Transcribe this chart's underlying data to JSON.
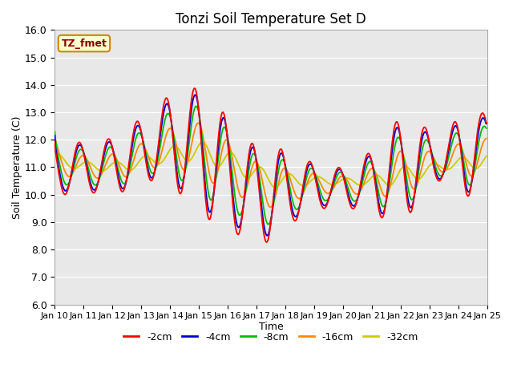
{
  "title": "Tonzi Soil Temperature Set D",
  "xlabel": "Time",
  "ylabel": "Soil Temperature (C)",
  "ylim": [
    6.0,
    16.0
  ],
  "yticks": [
    6.0,
    7.0,
    8.0,
    9.0,
    10.0,
    11.0,
    12.0,
    13.0,
    14.0,
    15.0,
    16.0
  ],
  "xtick_labels": [
    "Jan 10",
    "Jan 11",
    "Jan 12",
    "Jan 13",
    "Jan 14",
    "Jan 15",
    "Jan 16",
    "Jan 17",
    "Jan 18",
    "Jan 19",
    "Jan 20",
    "Jan 21",
    "Jan 22",
    "Jan 23",
    "Jan 24",
    "Jan 25"
  ],
  "bg_color": "#e8e8e8",
  "legend_label": "TZ_fmet",
  "legend_bg": "#ffffcc",
  "legend_border": "#cc8800",
  "series_colors": {
    "-2cm": "#ff0000",
    "-4cm": "#0000cc",
    "-8cm": "#00bb00",
    "-16cm": "#ff8800",
    "-32cm": "#cccc00"
  },
  "series_lw": 1.3,
  "figsize": [
    6.4,
    4.8
  ],
  "dpi": 100
}
